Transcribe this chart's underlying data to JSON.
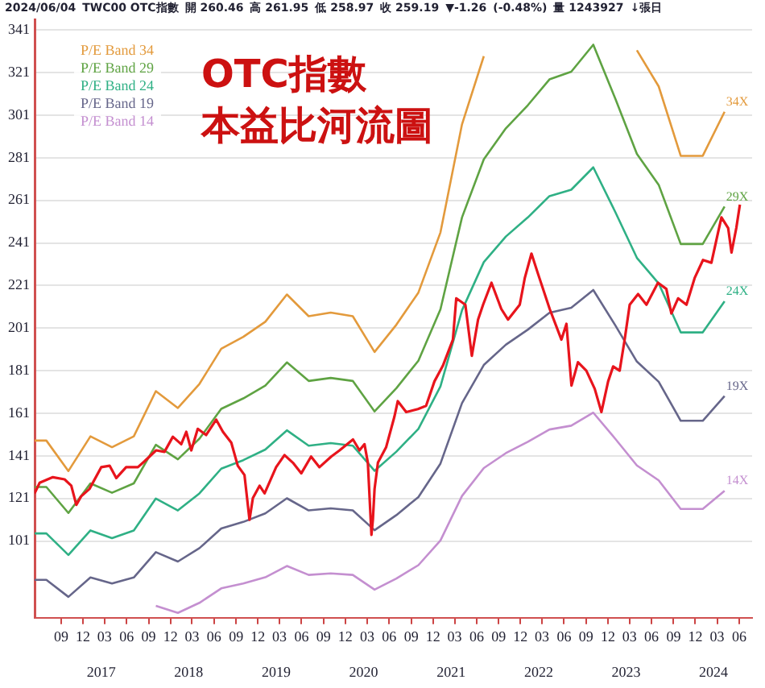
{
  "chart_data": {
    "type": "line",
    "title": "OTC指數",
    "subtitle": "本益比河流圖",
    "annotations": [
      "2024/06/04",
      "TWC00 OTC指數",
      "開 260.46",
      "高 261.95",
      "低 258.97",
      "收 259.19",
      "▼-1.26",
      "(-0.48%)",
      "量 1243927",
      "↓張日",
      {
        "text": "34X",
        "x": "2024-04",
        "y": 302.6
      },
      {
        "text": "29X",
        "x": "2024-04",
        "y": 258.1
      },
      {
        "text": "24X",
        "x": "2024-04",
        "y": 213.6
      },
      {
        "text": "19X",
        "x": "2024-04",
        "y": 169.1
      },
      {
        "text": "14X",
        "x": "2024-04",
        "y": 124.6
      }
    ],
    "x": [
      "2016-05-13",
      "2016-07",
      "2016-10",
      "2017-01",
      "2017-04",
      "2017-07",
      "2017-10",
      "2018-01",
      "2018-04",
      "2018-07",
      "2018-10",
      "2019-01",
      "2019-04",
      "2019-07",
      "2019-10",
      "2020-01",
      "2020-04",
      "2020-07",
      "2020-10",
      "2021-01",
      "2021-04",
      "2021-07",
      "2021-10",
      "2022-01",
      "2022-04",
      "2022-07",
      "2022-10",
      "2023-01",
      "2023-04",
      "2023-07",
      "2023-10",
      "2024-01",
      "2024-04"
    ],
    "series": [
      {
        "name": "P/E Band 34",
        "color": "#e39a3c",
        "values": [
          148.2,
          148.2,
          133.9,
          150.2,
          145.1,
          150.2,
          171.4,
          163.5,
          174.8,
          191.3,
          196.9,
          204,
          216.8,
          206.6,
          208.3,
          206.6,
          189.8,
          202.6,
          217.7,
          245.9,
          296.7,
          328.7,
          null,
          null,
          null,
          null,
          null,
          null,
          331.5,
          314.5,
          281.9,
          281.9,
          302.6
        ]
      },
      {
        "name": "P/E Band 29",
        "color": "#5fa343",
        "values": [
          126.4,
          126.4,
          114.2,
          128.1,
          123.7,
          128.1,
          146.2,
          139.4,
          149.1,
          163.1,
          168,
          174,
          184.9,
          176.2,
          177.6,
          176.2,
          161.9,
          172.8,
          185.7,
          209.8,
          253,
          280.3,
          294.8,
          305.7,
          317.8,
          321.4,
          334.1,
          308.7,
          282.8,
          268.3,
          240.5,
          240.5,
          258.1
        ]
      },
      {
        "name": "P/E Band 24",
        "color": "#2fb085",
        "values": [
          104.6,
          104.6,
          94.5,
          106,
          102.4,
          106,
          121,
          115.4,
          123.4,
          135,
          139,
          144,
          153,
          145.8,
          147,
          145.8,
          134,
          143,
          153.7,
          173.6,
          209.4,
          232,
          244,
          253,
          263,
          266,
          276.5,
          255.5,
          234,
          222,
          199,
          199,
          213.6
        ]
      },
      {
        "name": "P/E Band 19",
        "color": "#66668a",
        "values": [
          82.8,
          82.8,
          74.8,
          83.9,
          81.1,
          83.9,
          95.8,
          91.4,
          97.7,
          106.9,
          110,
          114,
          121.1,
          115.4,
          116.4,
          115.4,
          106.1,
          113.2,
          121.7,
          137.4,
          165.8,
          183.7,
          193.2,
          200.3,
          208.2,
          210.6,
          218.9,
          202.3,
          185.3,
          175.8,
          157.5,
          157.5,
          169.1
        ]
      },
      {
        "name": "P/E Band 14",
        "color": "#c48fd0",
        "values": [
          null,
          null,
          null,
          null,
          null,
          null,
          70.6,
          67.3,
          72,
          78.8,
          81.1,
          84,
          89.3,
          85.1,
          85.8,
          85.1,
          78.2,
          83.4,
          89.7,
          101.3,
          122.2,
          135.3,
          142.3,
          147.6,
          153.4,
          155.2,
          161.3,
          149,
          136.5,
          129.5,
          116.1,
          116.1,
          124.6
        ]
      },
      {
        "color": "#e8141c",
        "x": [
          "2016-05-13",
          "2016-06-03",
          "2016-07-28",
          "2016-09-15",
          "2016-10-13",
          "2016-11-03",
          "2016-11-23",
          "2016-12-28",
          "2017-02-15",
          "2017-03-22",
          "2017-04-19",
          "2017-05-30",
          "2017-07-18",
          "2017-08-15",
          "2017-10-02",
          "2017-11-06",
          "2017-12-11",
          "2018-01-15",
          "2018-02-05",
          "2018-02-26",
          "2018-03-25",
          "2018-04-29",
          "2018-06-10",
          "2018-07-08",
          "2018-08-12",
          "2018-09-08",
          "2018-10-06",
          "2018-10-27",
          "2018-11-10",
          "2018-12-08",
          "2018-12-29",
          "2019-02-15",
          "2019-03-22",
          "2019-04-26",
          "2019-05-31",
          "2019-07-11",
          "2019-08-15",
          "2019-10-03",
          "2019-11-07",
          "2020-01-02",
          "2020-01-29",
          "2020-02-19",
          "2020-03-04",
          "2020-03-19",
          "2020-03-25",
          "2020-04-01",
          "2020-04-15",
          "2020-05-19",
          "2020-06-23",
          "2020-07-07",
          "2020-08-11",
          "2020-09-29",
          "2020-11-02",
          "2020-12-07",
          "2021-01-11",
          "2021-02-22",
          "2021-03-08",
          "2021-04-15",
          "2021-05-12",
          "2021-06-07",
          "2021-06-28",
          "2021-08-02",
          "2021-09-12",
          "2021-10-10",
          "2021-11-28",
          "2021-12-19",
          "2022-01-16",
          "2022-02-12",
          "2022-04-02",
          "2022-05-21",
          "2022-06-11",
          "2022-07-02",
          "2022-07-29",
          "2022-09-02",
          "2022-10-07",
          "2022-11-04",
          "2022-12-02",
          "2022-12-23",
          "2023-01-19",
          "2023-02-09",
          "2023-03-02",
          "2023-04-06",
          "2023-05-11",
          "2023-06-28",
          "2023-08-02",
          "2023-08-23",
          "2023-09-20",
          "2023-10-25",
          "2023-11-28",
          "2024-01-02",
          "2024-02-06",
          "2024-03-05",
          "2024-03-19",
          "2024-04-16",
          "2024-04-30",
          "2024-05-20",
          "2024-06-04"
        ],
        "values": [
          123.4,
          128.4,
          131,
          130,
          127,
          118,
          122,
          125.5,
          135.7,
          136.4,
          130.6,
          135.7,
          135.7,
          138.5,
          143.6,
          142.9,
          150,
          146.5,
          152.3,
          143.6,
          153.7,
          150.8,
          158,
          152.3,
          147.2,
          136.4,
          132,
          111,
          121.2,
          127,
          123.4,
          135.7,
          141.4,
          137.8,
          132.8,
          140.7,
          135.7,
          140.7,
          143.6,
          148.7,
          143.6,
          146.5,
          137.8,
          103.9,
          111,
          125.5,
          137.8,
          145,
          159.5,
          166.7,
          161.6,
          163,
          164.5,
          176,
          183.3,
          195.6,
          215,
          212,
          188,
          205,
          212,
          222.3,
          210,
          205,
          212,
          224.5,
          236,
          226.6,
          210,
          195.6,
          203,
          174,
          185,
          181,
          172.5,
          161.6,
          176,
          183,
          181,
          195.6,
          212,
          217,
          212,
          222.3,
          219.4,
          207.9,
          215,
          212,
          224.5,
          233,
          231.7,
          246,
          253,
          248,
          236.5,
          248,
          259
        ]
      }
    ],
    "xlim": [
      "2016-05-13",
      "2024-07-25"
    ],
    "xticks": [
      {
        "value": "2016-09",
        "label": "09"
      },
      {
        "value": "2016-12",
        "label": "12"
      },
      {
        "value": "2017-03",
        "label": "03"
      },
      {
        "value": "2017-06",
        "label": "06"
      },
      {
        "value": "2017-09",
        "label": "09"
      },
      {
        "value": "2017-12",
        "label": "12"
      },
      {
        "value": "2018-03",
        "label": "03"
      },
      {
        "value": "2018-06",
        "label": "06"
      },
      {
        "value": "2018-09",
        "label": "09"
      },
      {
        "value": "2018-12",
        "label": "12"
      },
      {
        "value": "2019-03",
        "label": "03"
      },
      {
        "value": "2019-06",
        "label": "06"
      },
      {
        "value": "2019-09",
        "label": "09"
      },
      {
        "value": "2019-12",
        "label": "12"
      },
      {
        "value": "2020-03",
        "label": "03"
      },
      {
        "value": "2020-06",
        "label": "06"
      },
      {
        "value": "2020-09",
        "label": "09"
      },
      {
        "value": "2020-12",
        "label": "12"
      },
      {
        "value": "2021-03",
        "label": "03"
      },
      {
        "value": "2021-06",
        "label": "06"
      },
      {
        "value": "2021-09",
        "label": "09"
      },
      {
        "value": "2021-12",
        "label": "12"
      },
      {
        "value": "2022-03",
        "label": "03"
      },
      {
        "value": "2022-06",
        "label": "06"
      },
      {
        "value": "2022-09",
        "label": "09"
      },
      {
        "value": "2022-12",
        "label": "12"
      },
      {
        "value": "2023-03",
        "label": "03"
      },
      {
        "value": "2023-06",
        "label": "06"
      },
      {
        "value": "2023-09",
        "label": "09"
      },
      {
        "value": "2023-12",
        "label": "12"
      },
      {
        "value": "2024-03",
        "label": "03"
      },
      {
        "value": "2024-06",
        "label": "06"
      }
    ],
    "x2lim": [
      "2016-05-13",
      "2024-07-25"
    ],
    "x2ticks": [
      {
        "value": "2017-02-15",
        "label": "2017"
      },
      {
        "value": "2018-02-15",
        "label": "2018"
      },
      {
        "value": "2019-02-15",
        "label": "2019"
      },
      {
        "value": "2020-02-15",
        "label": "2020"
      },
      {
        "value": "2021-02-15",
        "label": "2021"
      },
      {
        "value": "2022-02-15",
        "label": "2022"
      },
      {
        "value": "2023-02-15",
        "label": "2023"
      },
      {
        "value": "2024-02-15",
        "label": "2024"
      }
    ],
    "ylim": [
      65,
      346
    ],
    "yticks": [
      101,
      121,
      141,
      161,
      181,
      201,
      221,
      241,
      261,
      281,
      301,
      321,
      341
    ],
    "grid": "y",
    "legend": "top left"
  }
}
